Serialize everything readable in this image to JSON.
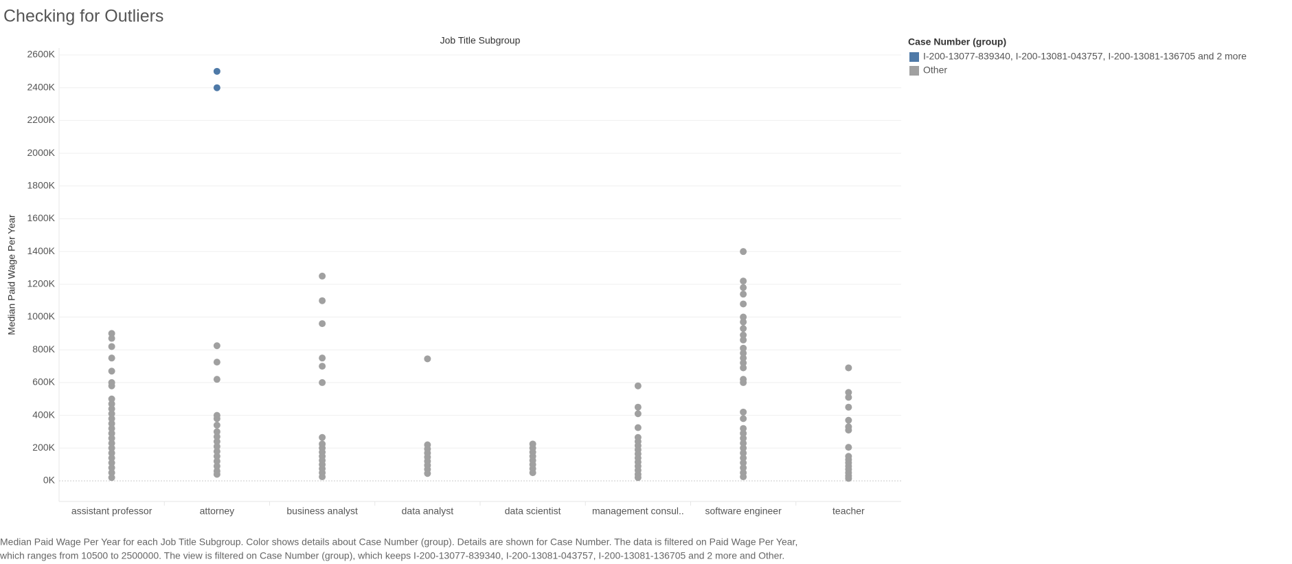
{
  "chart_data": {
    "type": "strip",
    "title": "Checking for Outliers",
    "column_header": "Job Title Subgroup",
    "y_label": "Median Paid Wage Per Year",
    "legend_title": "Case Number (group)",
    "categories": [
      "assistant professor",
      "attorney",
      "business analyst",
      "data analyst",
      "data scientist",
      "management consul..",
      "software engineer",
      "teacher"
    ],
    "series": [
      {
        "name": "I-200-13077-839340, I-200-13081-043757, I-200-13081-136705 and 2 more",
        "color": "#4e79a7",
        "values": [
          [],
          [
            2500000,
            2400000
          ],
          [],
          [],
          [],
          [],
          [],
          []
        ]
      },
      {
        "name": "Other",
        "color": "#a0a0a0",
        "values": [
          [
            900000,
            870000,
            820000,
            750000,
            670000,
            600000,
            580000,
            500000,
            470000,
            440000,
            410000,
            380000,
            350000,
            320000,
            290000,
            260000,
            230000,
            200000,
            170000,
            140000,
            110000,
            80000,
            50000,
            20000
          ],
          [
            825000,
            725000,
            620000,
            400000,
            380000,
            340000,
            300000,
            270000,
            240000,
            210000,
            180000,
            150000,
            120000,
            90000,
            60000,
            40000
          ],
          [
            1250000,
            1100000,
            960000,
            750000,
            700000,
            600000,
            265000,
            225000,
            200000,
            175000,
            150000,
            125000,
            100000,
            75000,
            50000,
            25000
          ],
          [
            745000,
            220000,
            195000,
            170000,
            145000,
            120000,
            95000,
            70000,
            45000
          ],
          [
            225000,
            200000,
            175000,
            150000,
            125000,
            100000,
            75000,
            50000
          ],
          [
            580000,
            450000,
            410000,
            325000,
            265000,
            240000,
            215000,
            190000,
            165000,
            140000,
            115000,
            90000,
            65000,
            40000,
            20000
          ],
          [
            1400000,
            1220000,
            1180000,
            1140000,
            1080000,
            1000000,
            970000,
            930000,
            890000,
            860000,
            810000,
            780000,
            750000,
            720000,
            690000,
            620000,
            600000,
            420000,
            380000,
            320000,
            290000,
            260000,
            230000,
            200000,
            170000,
            140000,
            110000,
            80000,
            50000,
            25000
          ],
          [
            690000,
            540000,
            510000,
            450000,
            370000,
            330000,
            310000,
            205000,
            150000,
            130000,
            110000,
            90000,
            70000,
            50000,
            30000,
            15000
          ]
        ]
      }
    ],
    "ylim": [
      -130000,
      2600000
    ],
    "yticks": [
      {
        "value": 0,
        "label": "0K"
      },
      {
        "value": 200000,
        "label": "200K"
      },
      {
        "value": 400000,
        "label": "400K"
      },
      {
        "value": 600000,
        "label": "600K"
      },
      {
        "value": 800000,
        "label": "800K"
      },
      {
        "value": 1000000,
        "label": "1000K"
      },
      {
        "value": 1200000,
        "label": "1200K"
      },
      {
        "value": 1400000,
        "label": "1400K"
      },
      {
        "value": 1600000,
        "label": "1600K"
      },
      {
        "value": 1800000,
        "label": "1800K"
      },
      {
        "value": 2000000,
        "label": "2000K"
      },
      {
        "value": 2200000,
        "label": "2200K"
      },
      {
        "value": 2400000,
        "label": "2400K"
      },
      {
        "value": 2600000,
        "label": "2600K"
      }
    ],
    "grid": true,
    "legend_position": "right",
    "caption": [
      "Median Paid Wage Per Year for each Job Title Subgroup.  Color shows details about Case Number (group).  Details are shown for Case Number. The data is filtered on Paid Wage Per Year,",
      "which ranges from 10500 to 2500000. The view is filtered on Case Number (group), which keeps I-200-13077-839340, I-200-13081-043757, I-200-13081-136705 and 2 more and Other."
    ]
  }
}
